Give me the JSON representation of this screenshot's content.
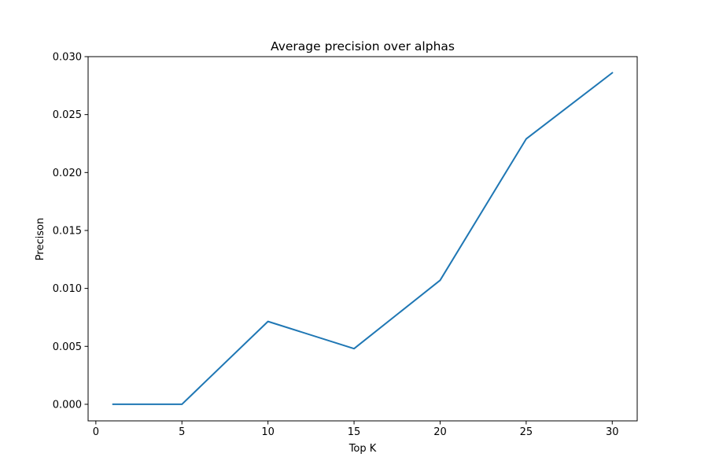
{
  "chart_data": {
    "type": "line",
    "title": "Average precision over alphas",
    "xlabel": "Top K",
    "ylabel": "Precison",
    "xlim": [
      -0.45,
      31.45
    ],
    "ylim": [
      -0.00143,
      0.03
    ],
    "x_ticks": [
      0,
      5,
      10,
      15,
      20,
      25,
      30
    ],
    "x_tick_labels": [
      "0",
      "5",
      "10",
      "15",
      "20",
      "25",
      "30"
    ],
    "y_ticks": [
      0.0,
      0.005,
      0.01,
      0.015,
      0.02,
      0.025,
      0.03
    ],
    "y_tick_labels": [
      "0.000",
      "0.005",
      "0.010",
      "0.015",
      "0.020",
      "0.025",
      "0.030"
    ],
    "grid": false,
    "legend": "none",
    "series": [
      {
        "color": "#1f77b4",
        "x": [
          1,
          5,
          10,
          15,
          20,
          25,
          30
        ],
        "y": [
          0.0,
          0.0,
          0.00715,
          0.0048,
          0.0107,
          0.0229,
          0.0286
        ]
      }
    ]
  }
}
